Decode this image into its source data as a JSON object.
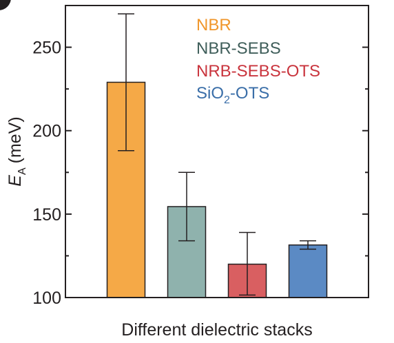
{
  "chart_data": {
    "type": "bar",
    "xlabel": "Different dielectric stacks",
    "ylabel": {
      "symbol": "E",
      "subscript": "A",
      "unit": "(meV)"
    },
    "ylim": [
      100,
      275
    ],
    "yticks": [
      100,
      150,
      200,
      250
    ],
    "ytick_labels": [
      "100",
      "150",
      "200",
      "250"
    ],
    "grid": false,
    "legend_placement": "top-right",
    "series": [
      {
        "name": "NBR",
        "value": 229,
        "error_low": 188,
        "error_high": 270,
        "color": "#f5a947",
        "text_color": "#f0962a"
      },
      {
        "name": "NBR-SEBS",
        "value": 154.5,
        "error_low": 134,
        "error_high": 175,
        "color": "#8fb2ad",
        "text_color": "#3f5e5a"
      },
      {
        "name": "NRB-SEBS-OTS",
        "value": 120,
        "error_low": 101.5,
        "error_high": 139,
        "color": "#d95f61",
        "text_color": "#c9343d"
      },
      {
        "name_main": "SiO",
        "name_sub": "2",
        "name_tail": "-OTS",
        "value": 131.5,
        "error_low": 129,
        "error_high": 134,
        "color": "#5b8ac4",
        "text_color": "#3a6ea8"
      }
    ]
  }
}
